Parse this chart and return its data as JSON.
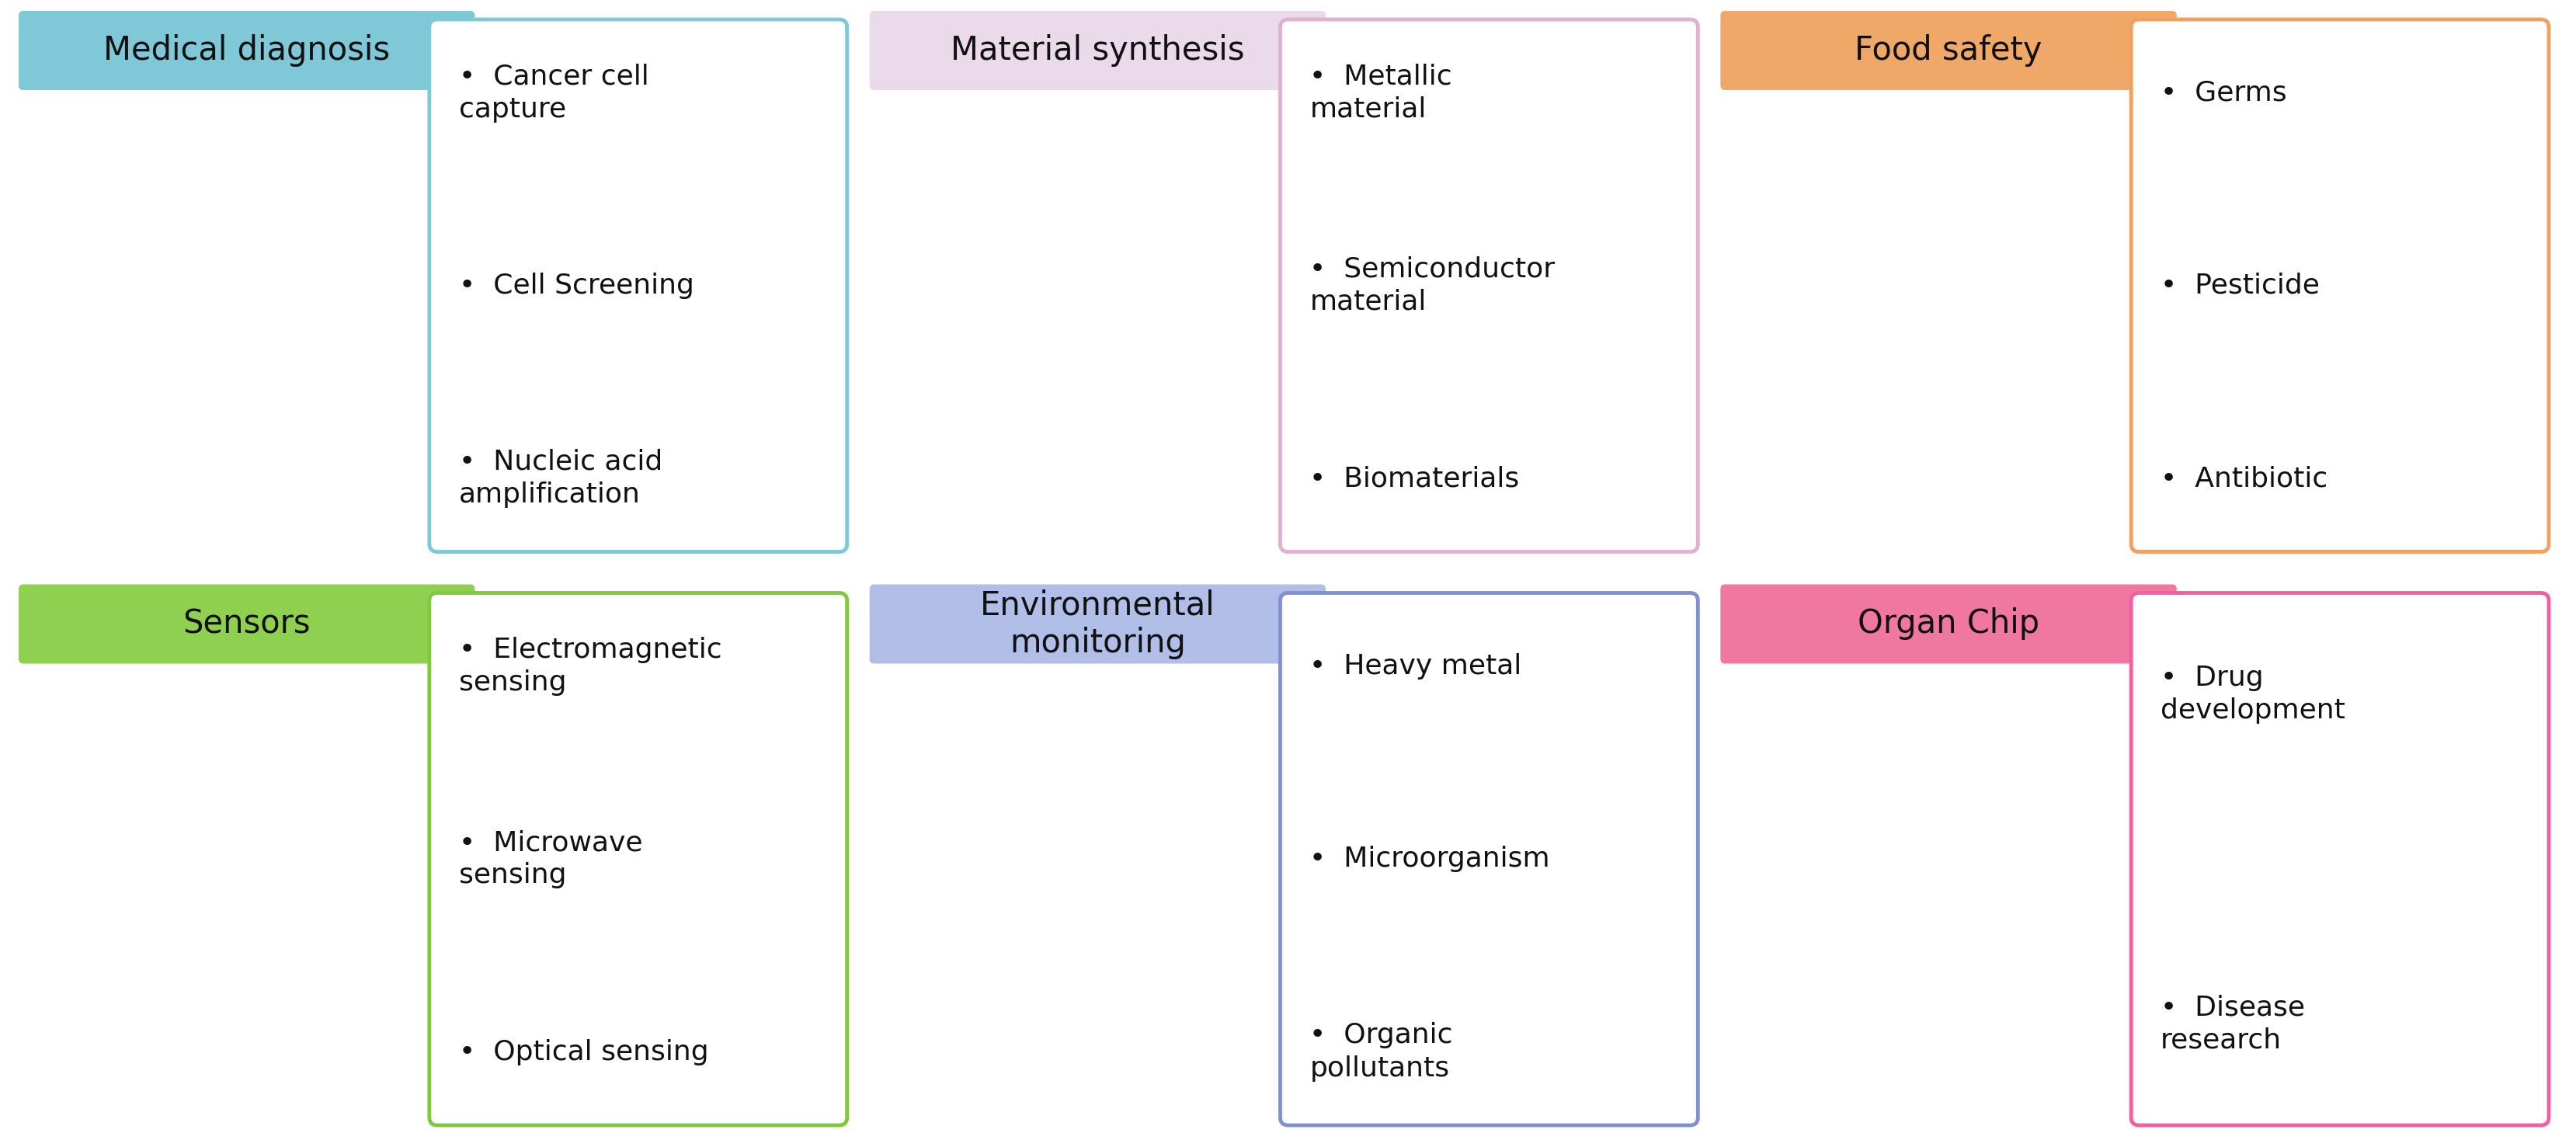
{
  "background_color": "#ffffff",
  "panels": [
    {
      "title": "Medical diagnosis",
      "title_bg": "#7EC8D8",
      "title_color": "#000000",
      "box_border": "#7EC8D8",
      "bullets": [
        "Cancer cell\ncapture",
        "Cell Screening",
        "Nucleic acid\namplification"
      ],
      "col": 0,
      "row": 0
    },
    {
      "title": "Material synthesis",
      "title_bg": "#EADAEA",
      "title_color": "#000000",
      "box_border": "#E0B0D0",
      "bullets": [
        "Metallic\nmaterial",
        "Semiconductor\nmaterial",
        "Biomaterials"
      ],
      "col": 1,
      "row": 0
    },
    {
      "title": "Food safety",
      "title_bg": "#F0A868",
      "title_color": "#000000",
      "box_border": "#F0A060",
      "bullets": [
        "Germs",
        "Pesticide",
        "Antibiotic"
      ],
      "col": 2,
      "row": 0
    },
    {
      "title": "Sensors",
      "title_bg": "#90D050",
      "title_color": "#000000",
      "box_border": "#80C840",
      "bullets": [
        "Electromagnetic\nsensing",
        "Microwave\nsensing",
        "Optical sensing"
      ],
      "col": 0,
      "row": 1
    },
    {
      "title": "Environmental\nmonitoring",
      "title_bg": "#B0BEE8",
      "title_color": "#000000",
      "box_border": "#8090D0",
      "bullets": [
        "Heavy metal",
        "Microorganism",
        "Organic\npollutants"
      ],
      "col": 1,
      "row": 1
    },
    {
      "title": "Organ Chip",
      "title_bg": "#F078A0",
      "title_color": "#000000",
      "box_border": "#F060A0",
      "bullets": [
        "Drug\ndevelopment",
        "Disease\nresearch"
      ],
      "col": 2,
      "row": 1
    }
  ]
}
